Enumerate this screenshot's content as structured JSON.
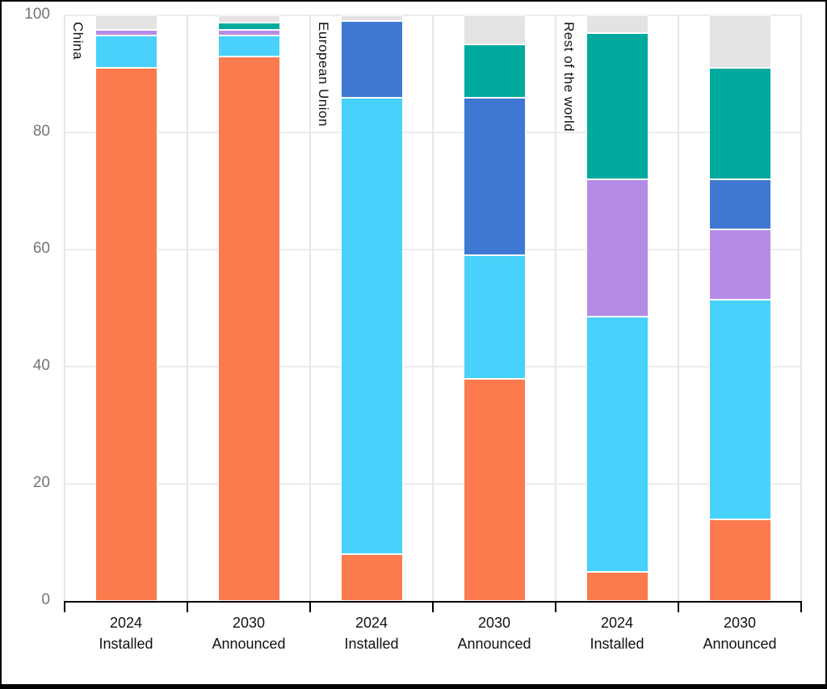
{
  "chart_data": {
    "type": "bar",
    "stacked": true,
    "title": "",
    "xlabel": "",
    "ylabel": "",
    "ylim": [
      0,
      100
    ],
    "yticks": [
      0,
      20,
      40,
      60,
      80,
      100
    ],
    "grid": true,
    "legend_position": "none-visible",
    "groups": [
      "China",
      "European Union",
      "Rest of the world"
    ],
    "categories": [
      "2024 Installed",
      "2030 Announced",
      "2024 Installed",
      "2030 Announced",
      "2024 Installed",
      "2030 Announced"
    ],
    "category_lines": [
      [
        "2024",
        "Installed"
      ],
      [
        "2030",
        "Announced"
      ],
      [
        "2024",
        "Installed"
      ],
      [
        "2030",
        "Announced"
      ],
      [
        "2024",
        "Installed"
      ],
      [
        "2030",
        "Announced"
      ]
    ],
    "series": [
      {
        "name": "orange",
        "color": "#fb7a4e",
        "values": [
          91,
          93,
          8,
          38,
          5,
          14
        ]
      },
      {
        "name": "cyan",
        "color": "#48d1fa",
        "values": [
          5.5,
          3.5,
          78,
          21,
          43.5,
          37.5
        ]
      },
      {
        "name": "purple",
        "color": "#b48ce8",
        "values": [
          1,
          1,
          0,
          0,
          23.5,
          12
        ]
      },
      {
        "name": "blue",
        "color": "#3e78d2",
        "values": [
          0,
          0,
          13,
          27,
          0,
          8.5
        ]
      },
      {
        "name": "teal",
        "color": "#00aa9e",
        "values": [
          0,
          1.25,
          0,
          9,
          25,
          19
        ]
      },
      {
        "name": "grey",
        "color": "#e4e2e2",
        "values": [
          2.5,
          1.25,
          1,
          5,
          3,
          9
        ]
      }
    ]
  },
  "style": {
    "gridline_color": "#ececec",
    "slot_line_color": "#e6e6e6",
    "axis_color": "#000000",
    "ytick_color": "#757575",
    "text_color": "#111111",
    "background": "#ffffff",
    "segment_border": "#ffffff"
  }
}
